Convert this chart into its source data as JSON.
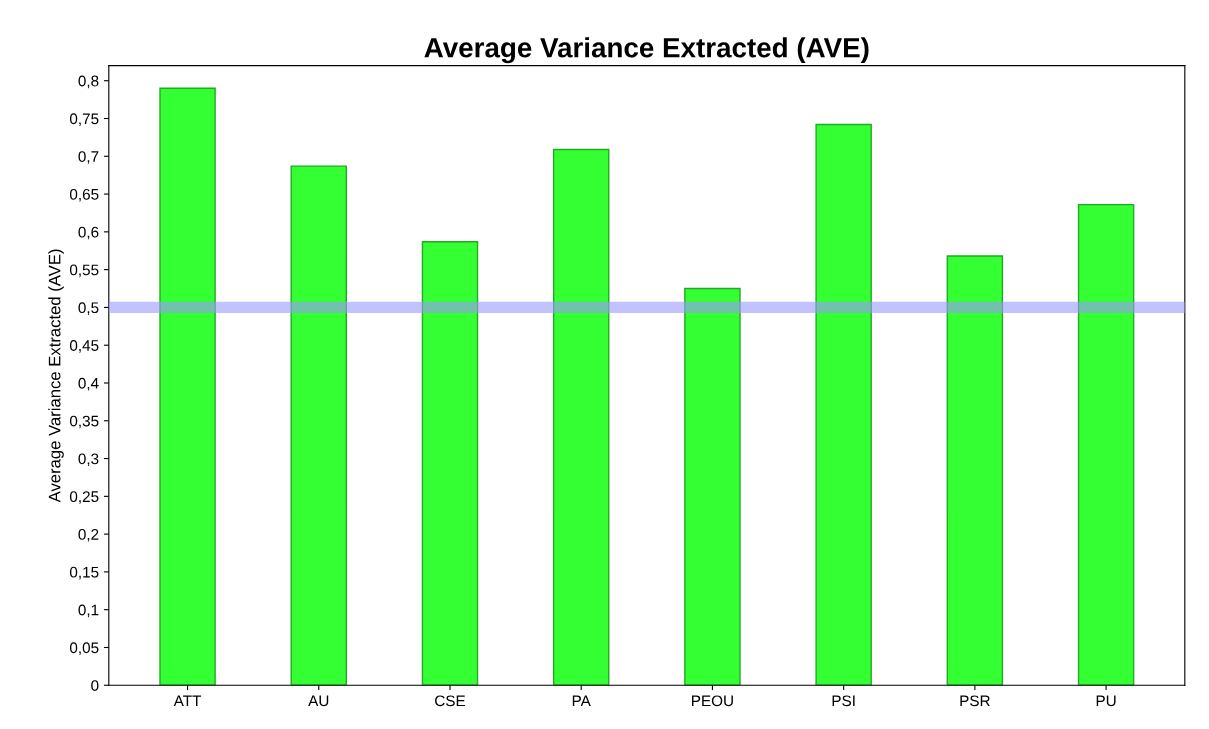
{
  "chart_data": {
    "type": "bar",
    "title": "Average Variance Extracted (AVE)",
    "ylabel": "Average Variance Extracted (AVE)",
    "categories": [
      "ATT",
      "AU",
      "CSE",
      "PA",
      "PEOU",
      "PSI",
      "PSR",
      "PU"
    ],
    "values": [
      0.79,
      0.687,
      0.587,
      0.709,
      0.525,
      0.742,
      0.568,
      0.636
    ],
    "color": "#33ff33",
    "ylim": [
      0,
      0.82
    ],
    "yticks": [
      0,
      {
        "value": 0.05,
        "label": "0,05"
      },
      {
        "value": 0.1,
        "label": "0,1"
      },
      {
        "value": 0.15,
        "label": "0,15"
      },
      {
        "value": 0.2,
        "label": "0,2"
      },
      {
        "value": 0.25,
        "label": "0,25"
      },
      {
        "value": 0.3,
        "label": "0,3"
      },
      {
        "value": 0.35,
        "label": "0,35"
      },
      {
        "value": 0.4,
        "label": "0,4"
      },
      {
        "value": 0.45,
        "label": "0,45"
      },
      {
        "value": 0.5,
        "label": "0,5"
      },
      {
        "value": 0.55,
        "label": "0,55"
      },
      {
        "value": 0.6,
        "label": "0,6"
      },
      {
        "value": 0.65,
        "label": "0,65"
      },
      {
        "value": 0.7,
        "label": "0,7"
      },
      {
        "value": 0.75,
        "label": "0,75"
      },
      {
        "value": 0.8,
        "label": "0,8"
      }
    ],
    "ref_lines": [
      {
        "axis": "y",
        "value": 0.5,
        "color": "#9999ff"
      }
    ]
  }
}
